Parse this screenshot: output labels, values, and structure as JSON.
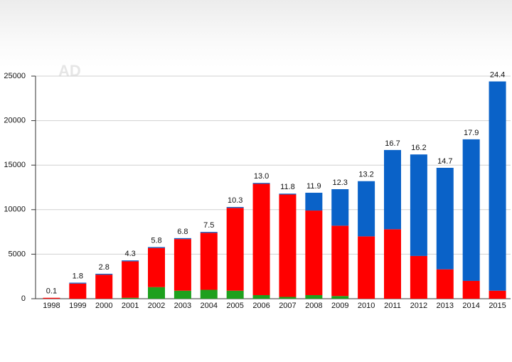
{
  "chart_data": {
    "type": "stacked_bar",
    "watermark": "AD",
    "categories": [
      "1998",
      "1999",
      "2000",
      "2001",
      "2002",
      "2003",
      "2004",
      "2005",
      "2006",
      "2007",
      "2008",
      "2009",
      "2010",
      "2011",
      "2012",
      "2013",
      "2014",
      "2015"
    ],
    "series": [
      {
        "color": "#1ea01e",
        "values": [
          0,
          0,
          0,
          100,
          1300,
          900,
          1000,
          900,
          400,
          200,
          400,
          300,
          0,
          0,
          0,
          0,
          0,
          0
        ]
      },
      {
        "color": "#ff0000",
        "values": [
          100,
          1700,
          2700,
          4100,
          4400,
          5800,
          6400,
          9300,
          12500,
          11500,
          9500,
          7900,
          7000,
          7800,
          4800,
          3300,
          2000,
          900
        ]
      },
      {
        "color": "#0a62c8",
        "values": [
          0,
          100,
          100,
          100,
          100,
          100,
          100,
          100,
          100,
          100,
          2000,
          4100,
          6200,
          8900,
          11400,
          11400,
          15900,
          23500
        ]
      }
    ],
    "annotations": [
      "0.1",
      "1.8",
      "2.8",
      "4.3",
      "5.8",
      "6.8",
      "7.5",
      "10.3",
      "13.0",
      "11.8",
      "11.9",
      "12.3",
      "13.2",
      "16.7",
      "16.2",
      "14.7",
      "17.9",
      "24.4"
    ],
    "ylim": [
      0,
      25000
    ],
    "yticks": [
      0,
      5000,
      10000,
      15000,
      20000,
      25000
    ],
    "grid": true
  }
}
